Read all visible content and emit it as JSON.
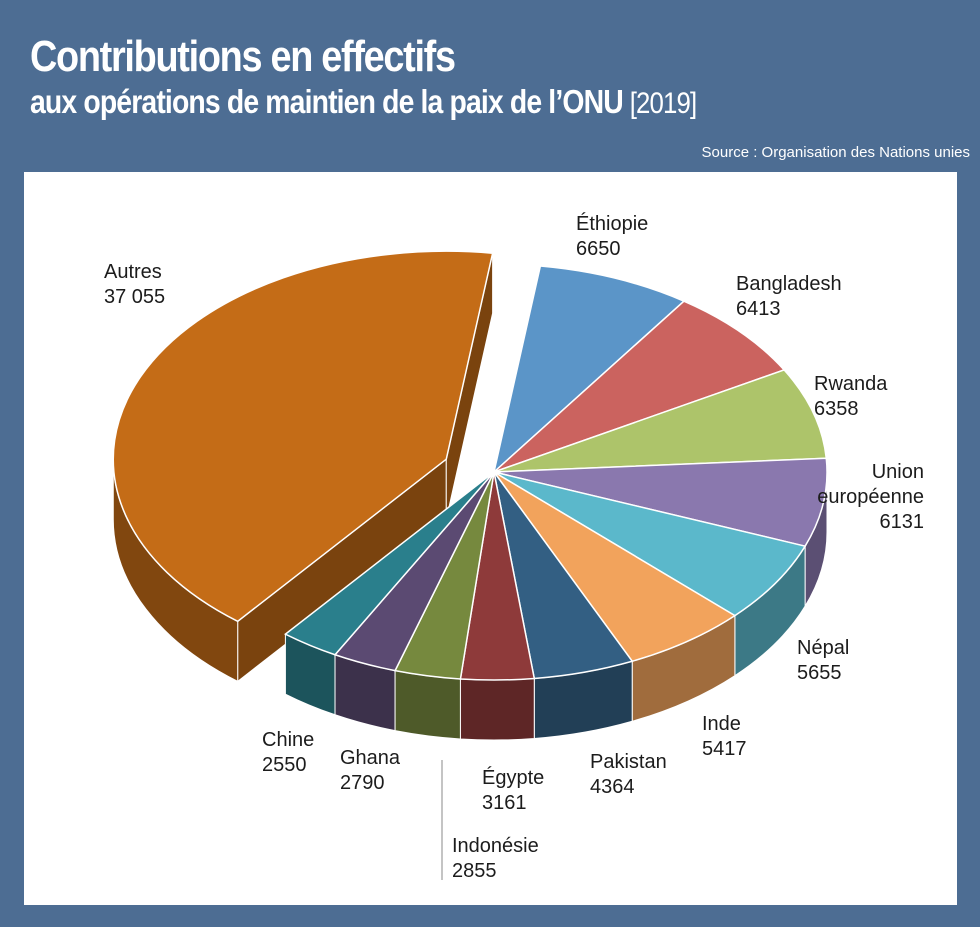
{
  "title": "Contributions en effectifs",
  "subtitle": "aux opérations de maintien de la paix de l’ONU",
  "year": "[2019]",
  "source": "Source : Organisation des Nations unies",
  "chart_data": {
    "type": "pie",
    "title": "Contributions en effectifs",
    "subtitle": "aux opérations de maintien de la paix de l’ONU [2019]",
    "slices": [
      {
        "label": "Éthiopie",
        "value": 6650,
        "value_text": "6650",
        "color": "#5b95c8"
      },
      {
        "label": "Bangladesh",
        "value": 6413,
        "value_text": "6413",
        "color": "#cb635f"
      },
      {
        "label": "Rwanda",
        "value": 6358,
        "value_text": "6358",
        "color": "#adc46a"
      },
      {
        "label": "Union européenne",
        "value": 6131,
        "value_text": "6131",
        "color": "#8a78ae"
      },
      {
        "label": "Népal",
        "value": 5655,
        "value_text": "5655",
        "color": "#5bb8cb"
      },
      {
        "label": "Inde",
        "value": 5417,
        "value_text": "5417",
        "color": "#f2a35c"
      },
      {
        "label": "Pakistan",
        "value": 4364,
        "value_text": "4364",
        "color": "#335f83"
      },
      {
        "label": "Égypte",
        "value": 3161,
        "value_text": "3161",
        "color": "#8e3a3a"
      },
      {
        "label": "Indonésie",
        "value": 2855,
        "value_text": "2855",
        "color": "#76893e"
      },
      {
        "label": "Ghana",
        "value": 2790,
        "value_text": "2790",
        "color": "#5b4a72"
      },
      {
        "label": "Chine",
        "value": 2550,
        "value_text": "2550",
        "color": "#2a7f8c"
      },
      {
        "label": "Autres",
        "value": 37055,
        "value_text": "37 055",
        "color": "#c46c17",
        "exploded": true
      }
    ]
  }
}
